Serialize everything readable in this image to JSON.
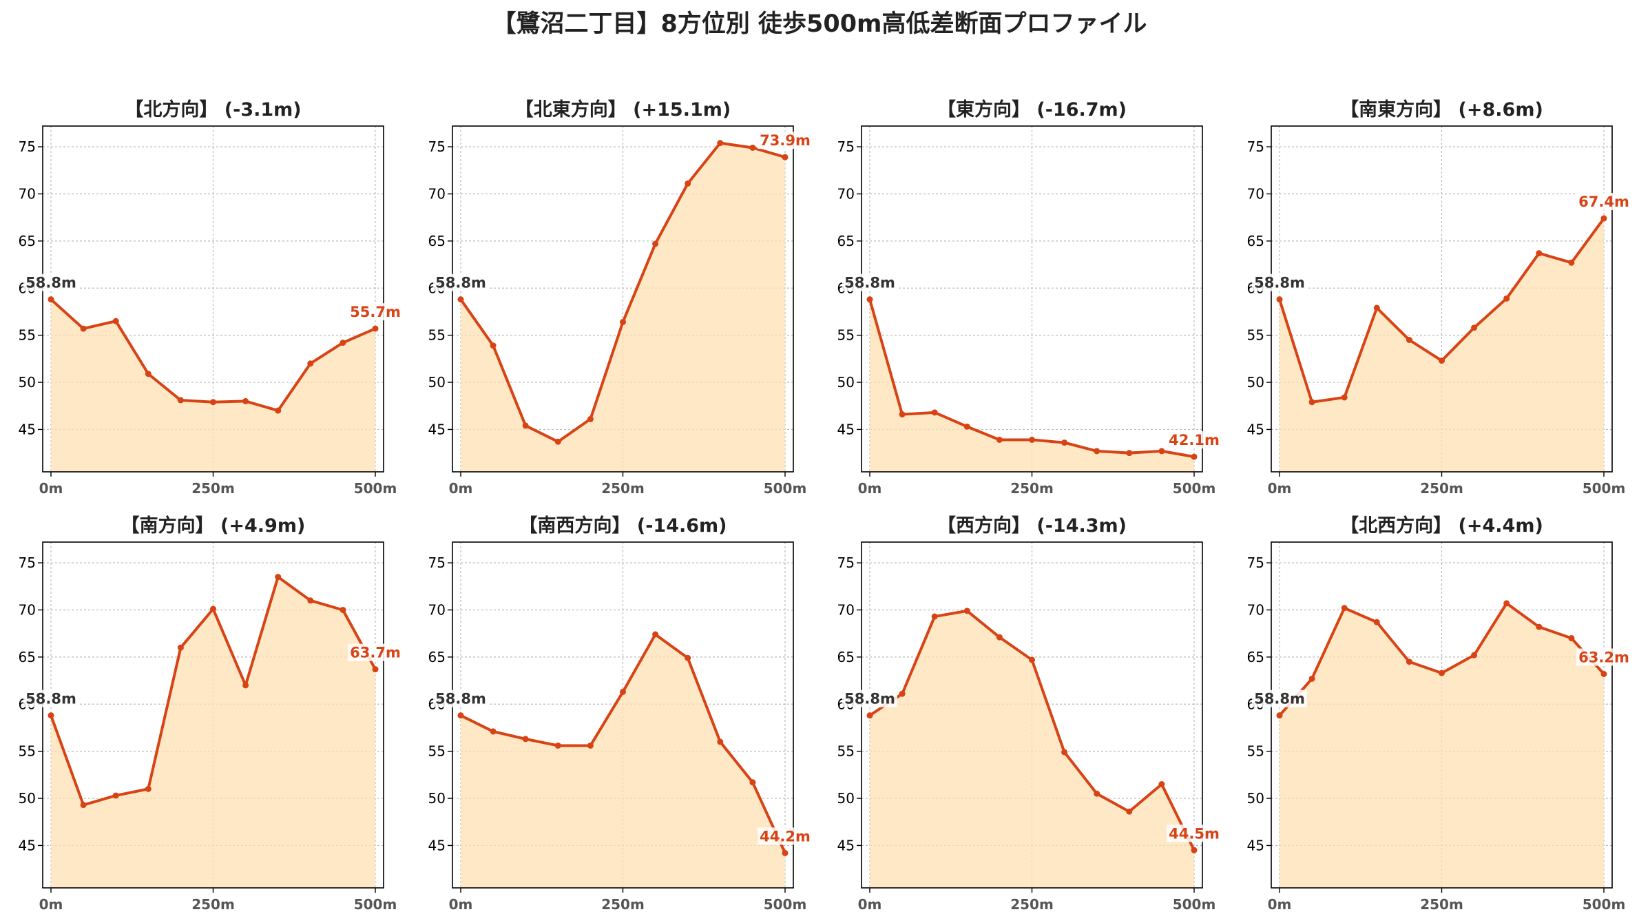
{
  "title": "【鷺沼二丁目】8方位別 徒歩500m高低差断面プロファイル",
  "colors": {
    "line": "#d84315",
    "fill": "#ffe0b2",
    "start_label": "#333333",
    "end_label": "#d84315",
    "grid": "#bbbbbb",
    "tick_text": "#555555"
  },
  "chart_data": [
    {
      "type": "area",
      "title": "【北方向】 (-3.1m)",
      "x": [
        0,
        50,
        100,
        150,
        200,
        250,
        300,
        350,
        400,
        450,
        500
      ],
      "y": [
        58.8,
        55.7,
        56.5,
        50.9,
        48.1,
        47.9,
        48.0,
        47.0,
        52.0,
        54.2,
        55.7
      ],
      "xticks": [
        "0m",
        "250m",
        "500m"
      ],
      "yticks": [
        45,
        50,
        55,
        60,
        65,
        70,
        75
      ],
      "ylim": [
        40.5,
        77.2
      ],
      "grid": true,
      "start_label": "58.8m",
      "end_label": "55.7m"
    },
    {
      "type": "area",
      "title": "【北東方向】 (+15.1m)",
      "x": [
        0,
        50,
        100,
        150,
        200,
        250,
        300,
        350,
        400,
        450,
        500
      ],
      "y": [
        58.8,
        53.9,
        45.4,
        43.7,
        46.1,
        56.4,
        64.7,
        71.1,
        75.4,
        74.9,
        73.9
      ],
      "xticks": [
        "0m",
        "250m",
        "500m"
      ],
      "yticks": [
        45,
        50,
        55,
        60,
        65,
        70,
        75
      ],
      "ylim": [
        40.5,
        77.2
      ],
      "grid": true,
      "start_label": "58.8m",
      "end_label": "73.9m"
    },
    {
      "type": "area",
      "title": "【東方向】 (-16.7m)",
      "x": [
        0,
        50,
        100,
        150,
        200,
        250,
        300,
        350,
        400,
        450,
        500
      ],
      "y": [
        58.8,
        46.6,
        46.8,
        45.3,
        43.9,
        43.9,
        43.6,
        42.7,
        42.5,
        42.7,
        42.1
      ],
      "xticks": [
        "0m",
        "250m",
        "500m"
      ],
      "yticks": [
        45,
        50,
        55,
        60,
        65,
        70,
        75
      ],
      "ylim": [
        40.5,
        77.2
      ],
      "grid": true,
      "start_label": "58.8m",
      "end_label": "42.1m"
    },
    {
      "type": "area",
      "title": "【南東方向】 (+8.6m)",
      "x": [
        0,
        50,
        100,
        150,
        200,
        250,
        300,
        350,
        400,
        450,
        500
      ],
      "y": [
        58.8,
        47.9,
        48.4,
        57.9,
        54.5,
        52.3,
        55.8,
        58.9,
        63.7,
        62.7,
        67.4
      ],
      "xticks": [
        "0m",
        "250m",
        "500m"
      ],
      "yticks": [
        45,
        50,
        55,
        60,
        65,
        70,
        75
      ],
      "ylim": [
        40.5,
        77.2
      ],
      "grid": true,
      "start_label": "58.8m",
      "end_label": "67.4m"
    },
    {
      "type": "area",
      "title": "【南方向】 (+4.9m)",
      "x": [
        0,
        50,
        100,
        150,
        200,
        250,
        300,
        350,
        400,
        450,
        500
      ],
      "y": [
        58.8,
        49.3,
        50.3,
        51.0,
        66.0,
        70.1,
        62.0,
        73.5,
        71.0,
        70.0,
        63.7
      ],
      "xticks": [
        "0m",
        "250m",
        "500m"
      ],
      "yticks": [
        45,
        50,
        55,
        60,
        65,
        70,
        75
      ],
      "ylim": [
        40.5,
        77.2
      ],
      "grid": true,
      "start_label": "58.8m",
      "end_label": "63.7m"
    },
    {
      "type": "area",
      "title": "【南西方向】 (-14.6m)",
      "x": [
        0,
        50,
        100,
        150,
        200,
        250,
        300,
        350,
        400,
        450,
        500
      ],
      "y": [
        58.8,
        57.1,
        56.3,
        55.6,
        55.6,
        61.3,
        67.4,
        64.9,
        56.0,
        51.7,
        44.2
      ],
      "xticks": [
        "0m",
        "250m",
        "500m"
      ],
      "yticks": [
        45,
        50,
        55,
        60,
        65,
        70,
        75
      ],
      "ylim": [
        40.5,
        77.2
      ],
      "grid": true,
      "start_label": "58.8m",
      "end_label": "44.2m"
    },
    {
      "type": "area",
      "title": "【西方向】 (-14.3m)",
      "x": [
        0,
        50,
        100,
        150,
        200,
        250,
        300,
        350,
        400,
        450,
        500
      ],
      "y": [
        58.8,
        61.1,
        69.3,
        69.9,
        67.1,
        64.7,
        54.9,
        50.5,
        48.6,
        51.5,
        44.5
      ],
      "xticks": [
        "0m",
        "250m",
        "500m"
      ],
      "yticks": [
        45,
        50,
        55,
        60,
        65,
        70,
        75
      ],
      "ylim": [
        40.5,
        77.2
      ],
      "grid": true,
      "start_label": "58.8m",
      "end_label": "44.5m"
    },
    {
      "type": "area",
      "title": "【北西方向】 (+4.4m)",
      "x": [
        0,
        50,
        100,
        150,
        200,
        250,
        300,
        350,
        400,
        450,
        500
      ],
      "y": [
        58.8,
        62.7,
        70.2,
        68.7,
        64.5,
        63.3,
        65.2,
        70.7,
        68.2,
        67.0,
        63.2
      ],
      "xticks": [
        "0m",
        "250m",
        "500m"
      ],
      "yticks": [
        45,
        50,
        55,
        60,
        65,
        70,
        75
      ],
      "ylim": [
        40.5,
        77.2
      ],
      "grid": true,
      "start_label": "58.8m",
      "end_label": "63.2m"
    }
  ]
}
